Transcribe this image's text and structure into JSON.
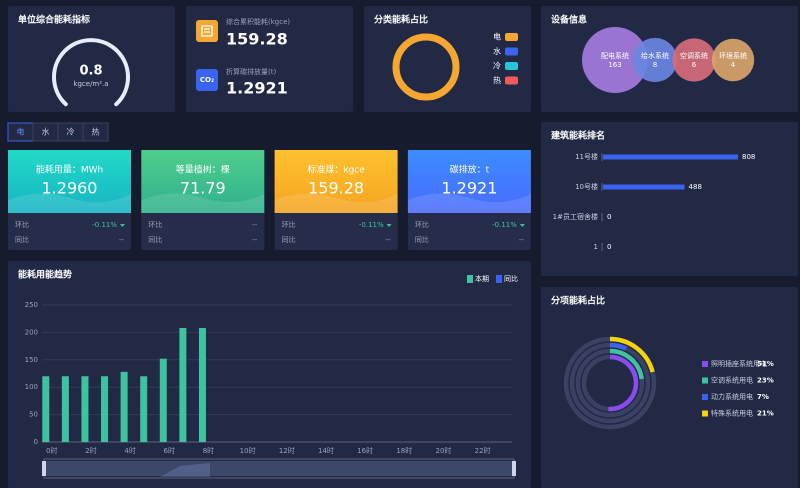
{
  "gauge": {
    "title": "单位综合能耗指标",
    "value": "0.8",
    "unit": "kgce/m².a"
  },
  "summary": {
    "items": [
      {
        "label": "综合累积能耗(kgce)",
        "value": "159.28"
      },
      {
        "label": "折算碳排放量(t)",
        "value": "1.2921",
        "icon": "CO₂"
      }
    ]
  },
  "tabs": [
    "电",
    "水",
    "冷",
    "热"
  ],
  "cards": [
    {
      "title": "能耗用量：MWh",
      "value": "1.2960",
      "mom_label": "环比",
      "mom": "-0.11%",
      "yoy_label": "同比",
      "yoy": "--"
    },
    {
      "title": "等量植树：棵",
      "value": "71.79",
      "mom_label": "环比",
      "mom": "--",
      "yoy_label": "同比",
      "yoy": "--"
    },
    {
      "title": "标准煤：kgce",
      "value": "159.28",
      "mom_label": "环比",
      "mom": "-0.11%",
      "yoy_label": "同比",
      "yoy": "--"
    },
    {
      "title": "碳排放：t",
      "value": "1.2921",
      "mom_label": "环比",
      "mom": "-0.11%",
      "yoy_label": "同比",
      "yoy": "--"
    }
  ],
  "chart_data": [
    {
      "type": "pie",
      "title": "分类能耗占比",
      "categories": [
        "电",
        "水",
        "冷",
        "热"
      ],
      "values": [
        100,
        0,
        0,
        0
      ],
      "colors": [
        "#f5a731",
        "#3b63f0",
        "#21c8d8",
        "#ef5a5a"
      ]
    },
    {
      "type": "bubble",
      "title": "设备信息",
      "categories": [
        "配电系统",
        "给水系统",
        "空调系统",
        "环境系统"
      ],
      "values": [
        163,
        8,
        6,
        4
      ],
      "colors": [
        "#a47be0",
        "#6a86e2",
        "#d66c7a",
        "#d8a46a"
      ]
    },
    {
      "type": "hbar",
      "title": "建筑能耗排名",
      "categories": [
        "11号楼",
        "10号楼",
        "1#员工宿舍楼",
        "1"
      ],
      "values": [
        808,
        488,
        0,
        0
      ],
      "color": "#3b63f0"
    },
    {
      "type": "bar",
      "title": "能耗用能趋势",
      "categories": [
        "0时",
        null,
        "2时",
        null,
        "4时",
        null,
        "6时",
        null,
        "8时",
        null,
        "10时",
        null,
        "12时",
        null,
        "14时",
        null,
        "16时",
        null,
        "18时",
        null,
        "20时",
        null,
        "22时",
        null
      ],
      "series": [
        {
          "name": "本期",
          "color": "#3ec3a0",
          "values": [
            120,
            120,
            120,
            120,
            128,
            120,
            152,
            208,
            208,
            null,
            null,
            null,
            null,
            null,
            null,
            null,
            null,
            null,
            null,
            null,
            null,
            null,
            null,
            null
          ]
        },
        {
          "name": "同比",
          "color": "#3b63f0",
          "values": [
            null,
            null,
            null,
            null,
            null,
            null,
            null,
            null,
            null,
            null,
            null,
            null,
            null,
            null,
            null,
            null,
            null,
            null,
            null,
            null,
            null,
            null,
            null,
            null
          ]
        }
      ],
      "ylim": [
        0,
        250
      ],
      "yticks": [
        0,
        50,
        100,
        150,
        200,
        250
      ],
      "grid": true
    },
    {
      "type": "rings",
      "title": "分项能耗占比",
      "categories": [
        "照明插座系统用电",
        "空调系统用电",
        "动力系统用电",
        "特殊系统用电"
      ],
      "values": [
        51,
        23,
        7,
        21
      ],
      "value_labels": [
        "51%",
        "23%",
        "7%",
        "21%"
      ],
      "colors": [
        "#8a4cf0",
        "#3ec3a0",
        "#3b63f0",
        "#f5d20a"
      ]
    }
  ]
}
